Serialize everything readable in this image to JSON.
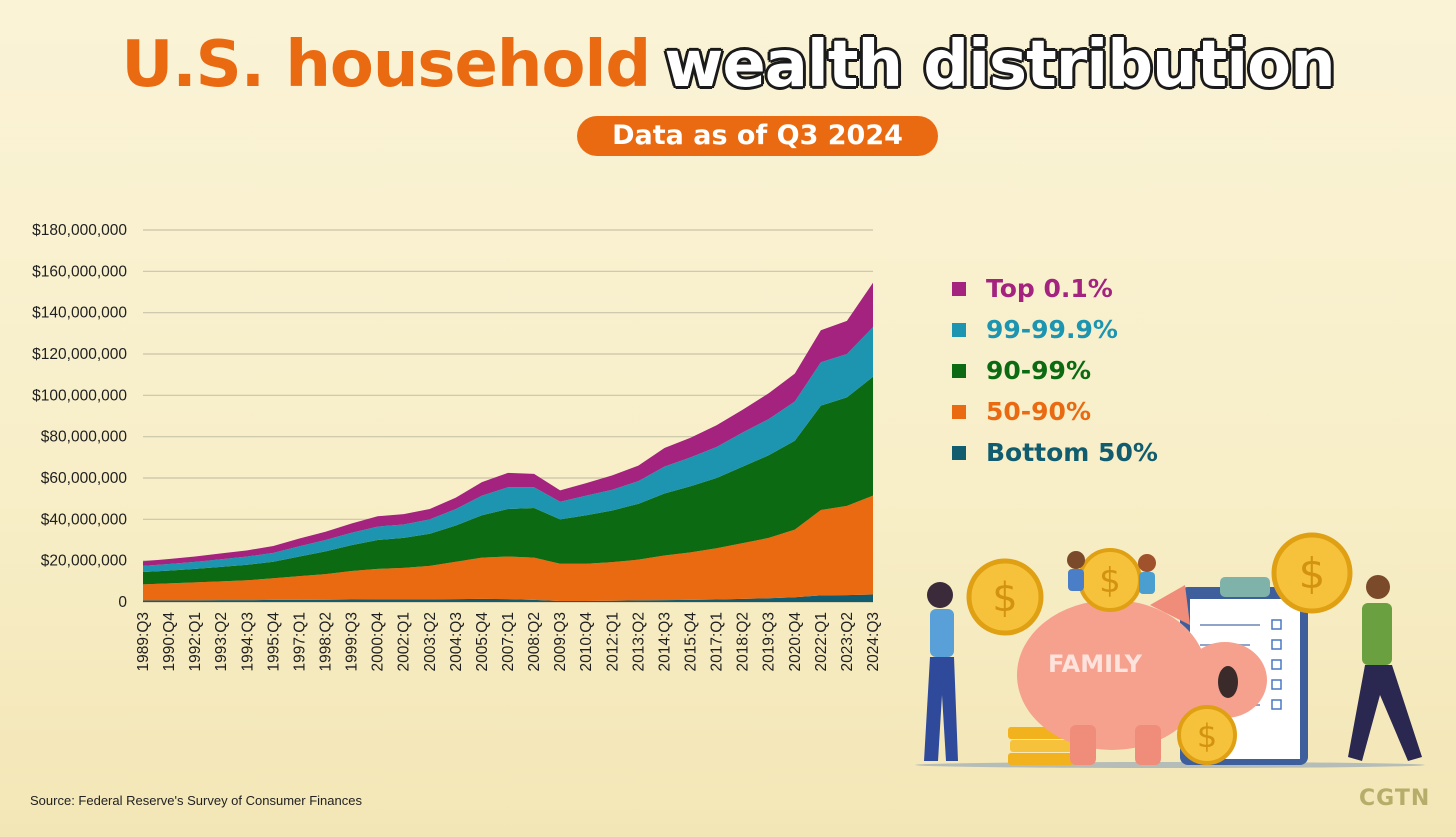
{
  "header": {
    "title_part1": "U.S. household",
    "title_part2": "wealth distribution",
    "subtitle": "Data as of Q3 2024"
  },
  "colors": {
    "accent": "#ea6a12",
    "top01": "#a3237e",
    "p99_999": "#1d95b1",
    "p90_99": "#0c6b12",
    "p50_90": "#ea6a12",
    "bottom50": "#115c6e"
  },
  "chart_data": {
    "type": "area",
    "stacked": true,
    "title": "",
    "xlabel": "",
    "ylabel": "",
    "ylim": [
      0,
      180000000
    ],
    "y_ticks": [
      0,
      20000000,
      40000000,
      60000000,
      80000000,
      100000000,
      120000000,
      140000000,
      160000000,
      180000000
    ],
    "y_tick_labels": [
      "0",
      "$20,000,000",
      "$40,000,000",
      "$60,000,000",
      "$80,000,000",
      "$100,000,000",
      "$120,000,000",
      "$140,000,000",
      "$160,000,000",
      "$180,000,000"
    ],
    "x_tick_labels": [
      "1989:Q3",
      "1990:Q4",
      "1992:Q1",
      "1993:Q2",
      "1994:Q3",
      "1995:Q4",
      "1997:Q1",
      "1998:Q2",
      "1999:Q3",
      "2000:Q4",
      "2002:Q1",
      "2003:Q2",
      "2004:Q3",
      "2005:Q4",
      "2007:Q1",
      "2008:Q2",
      "2009:Q3",
      "2010:Q4",
      "2012:Q1",
      "2013:Q2",
      "2014:Q3",
      "2015:Q4",
      "2017:Q1",
      "2018:Q2",
      "2019:Q3",
      "2020:Q4",
      "2022:Q1",
      "2023:Q2",
      "2024:Q3"
    ],
    "grid": true,
    "legend_position": "right",
    "x": [
      "1989:Q3",
      "1990:Q4",
      "1992:Q1",
      "1993:Q2",
      "1994:Q3",
      "1995:Q4",
      "1997:Q1",
      "1998:Q2",
      "1999:Q3",
      "2000:Q4",
      "2002:Q1",
      "2003:Q2",
      "2004:Q3",
      "2005:Q4",
      "2007:Q1",
      "2008:Q2",
      "2009:Q3",
      "2010:Q4",
      "2012:Q1",
      "2013:Q2",
      "2014:Q3",
      "2015:Q4",
      "2017:Q1",
      "2018:Q2",
      "2019:Q3",
      "2020:Q4",
      "2022:Q1",
      "2023:Q2",
      "2024:Q3"
    ],
    "series": [
      {
        "name": "Bottom 50%",
        "color": "#115c6e",
        "values": [
          800000,
          800000,
          800000,
          900000,
          900000,
          1000000,
          1000000,
          1100000,
          1200000,
          1300000,
          1300000,
          1300000,
          1400000,
          1500000,
          1400000,
          1000000,
          500000,
          500000,
          600000,
          800000,
          900000,
          1000000,
          1200000,
          1500000,
          1800000,
          2300000,
          3200000,
          3300000,
          3600000
        ]
      },
      {
        "name": "50-90%",
        "color": "#ea6a12",
        "values": [
          7700000,
          8200000,
          8700000,
          9100000,
          9600000,
          10500000,
          11500000,
          12400000,
          13800000,
          14700000,
          15200000,
          16200000,
          18100000,
          20000000,
          20600000,
          20500000,
          18000000,
          18000000,
          18700000,
          19700000,
          21600000,
          23000000,
          24800000,
          27000000,
          29200000,
          32700000,
          41300000,
          43200000,
          47900000
        ]
      },
      {
        "name": "90-99%",
        "color": "#0c6b12",
        "values": [
          6000000,
          6200000,
          6500000,
          7000000,
          7500000,
          8000000,
          9500000,
          11000000,
          12500000,
          14000000,
          14500000,
          15500000,
          17500000,
          20500000,
          23000000,
          24000000,
          21500000,
          23500000,
          25000000,
          27000000,
          30000000,
          32000000,
          34000000,
          37000000,
          40000000,
          43000000,
          50500000,
          52500000,
          57500000
        ]
      },
      {
        "name": "99-99.9%",
        "color": "#1d95b1",
        "values": [
          3000000,
          3200000,
          3400000,
          3700000,
          4000000,
          4300000,
          5000000,
          5500000,
          6000000,
          6500000,
          6500000,
          7000000,
          8000000,
          9500000,
          10500000,
          10000000,
          8500000,
          9500000,
          10000000,
          11000000,
          13000000,
          14000000,
          15000000,
          16500000,
          17500000,
          19000000,
          21000000,
          21000000,
          24000000
        ]
      },
      {
        "name": "Top 0.1%",
        "color": "#a3237e",
        "values": [
          2200000,
          2400000,
          2600000,
          2800000,
          3000000,
          3300000,
          3700000,
          4000000,
          4500000,
          5000000,
          5000000,
          5000000,
          5500000,
          6500000,
          7000000,
          6500000,
          5500000,
          6000000,
          7000000,
          7500000,
          9000000,
          9500000,
          10500000,
          11000000,
          12500000,
          13500000,
          15500000,
          16000000,
          21500000
        ]
      }
    ]
  },
  "legend": {
    "items": [
      {
        "label": "Top 0.1%",
        "color": "#a3237e"
      },
      {
        "label": "99-99.9%",
        "color": "#1d95b1"
      },
      {
        "label": "90-99%",
        "color": "#0c6b12"
      },
      {
        "label": "50-90%",
        "color": "#ea6a12"
      },
      {
        "label": "Bottom 50%",
        "color": "#115c6e"
      }
    ]
  },
  "illustration": {
    "piggy_label": "FAMILY",
    "coin_symbol": "$"
  },
  "footer": {
    "source": "Source: Federal Reserve's Survey of Consumer Finances",
    "brand": "CGTN"
  }
}
